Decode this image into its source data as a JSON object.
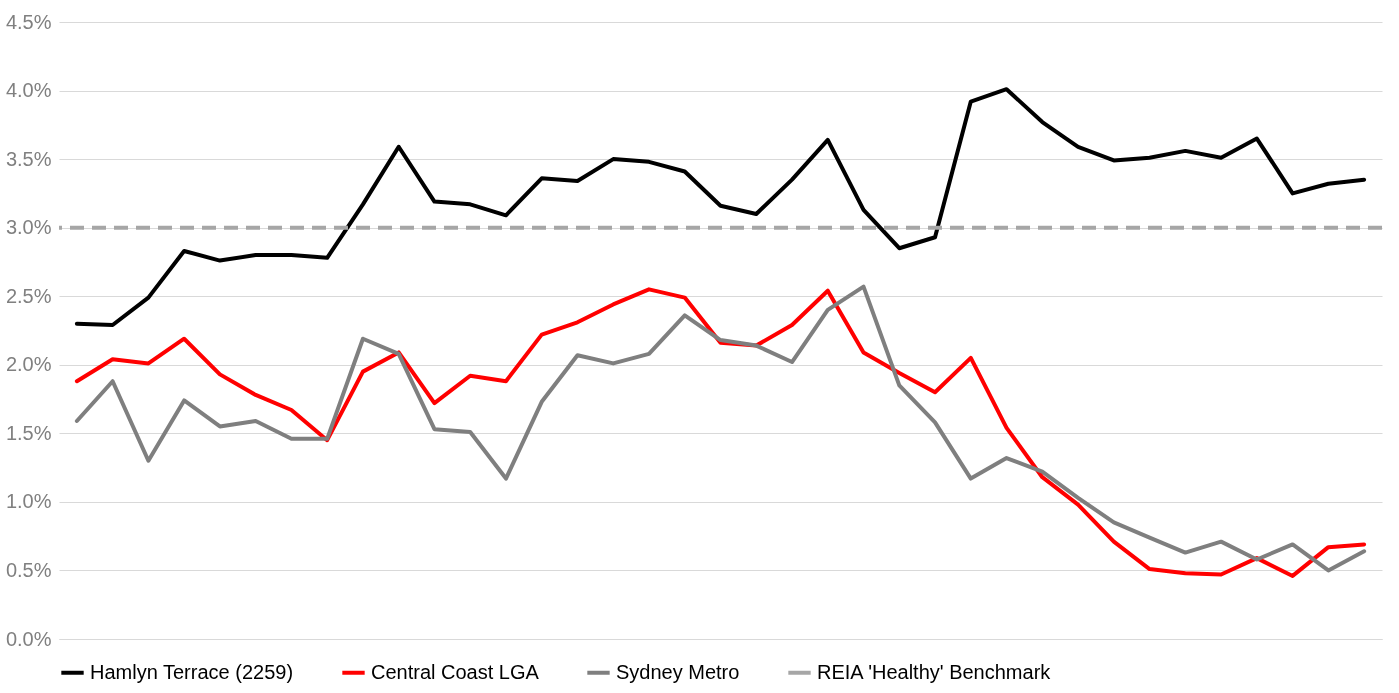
{
  "chart_data": {
    "type": "line",
    "categories": [
      null,
      null,
      null,
      null,
      null,
      null,
      null,
      null,
      null,
      null,
      null,
      null,
      null,
      null,
      null,
      null,
      null,
      null,
      null,
      null,
      null,
      null,
      null,
      null,
      null,
      null,
      null,
      null,
      null,
      null,
      null,
      null,
      null,
      null,
      null,
      null,
      null
    ],
    "series": [
      {
        "name": "Hamlyn Terrace (2259)",
        "color": "#000000",
        "values": [
          2.3,
          2.29,
          2.49,
          2.83,
          2.76,
          2.8,
          2.8,
          2.78,
          3.17,
          3.59,
          3.19,
          3.17,
          3.09,
          3.36,
          3.34,
          3.5,
          3.48,
          3.41,
          3.16,
          3.1,
          3.35,
          3.64,
          3.13,
          2.85,
          2.93,
          3.92,
          4.01,
          3.77,
          3.59,
          3.49,
          3.51,
          3.56,
          3.51,
          3.65,
          3.25,
          3.32,
          3.35
        ]
      },
      {
        "name": "Central Coast LGA",
        "color": "#ff0000",
        "values": [
          1.88,
          2.04,
          2.01,
          2.19,
          1.93,
          1.78,
          1.67,
          1.45,
          1.95,
          2.09,
          1.72,
          1.92,
          1.88,
          2.22,
          2.31,
          2.44,
          2.55,
          2.49,
          2.16,
          2.14,
          2.29,
          2.54,
          2.09,
          1.94,
          1.8,
          2.05,
          1.54,
          1.18,
          0.98,
          0.71,
          0.51,
          0.48,
          0.47,
          0.59,
          0.46,
          0.67,
          0.69
        ]
      },
      {
        "name": "Sydney Metro",
        "color": "#7f7f7f",
        "values": [
          1.59,
          1.88,
          1.3,
          1.74,
          1.55,
          1.59,
          1.46,
          1.46,
          2.19,
          2.08,
          1.53,
          1.51,
          1.17,
          1.73,
          2.07,
          2.01,
          2.08,
          2.36,
          2.18,
          2.14,
          2.02,
          2.4,
          2.57,
          1.85,
          1.58,
          1.17,
          1.32,
          1.22,
          1.03,
          0.85,
          0.74,
          0.63,
          0.71,
          0.58,
          0.69,
          0.5,
          0.64
        ]
      }
    ],
    "ref_lines": [
      {
        "axis": "y",
        "value": 3,
        "label": "REIA 'Healthy' Benchmark",
        "color": "#a6a6a6",
        "line_style": "dashed"
      }
    ],
    "ylim": [
      0,
      4.5
    ],
    "yticks": [
      {
        "value": 0,
        "label": "0.0%"
      },
      {
        "value": 0.5,
        "label": "0.5%"
      },
      {
        "value": 1,
        "label": "1.0%"
      },
      {
        "value": 1.5,
        "label": "1.5%"
      },
      {
        "value": 2,
        "label": "2.0%"
      },
      {
        "value": 2.5,
        "label": "2.5%"
      },
      {
        "value": 3,
        "label": "3.0%"
      },
      {
        "value": 3.5,
        "label": "3.5%"
      },
      {
        "value": 4,
        "label": "4.0%"
      },
      {
        "value": 4.5,
        "label": "4.5%"
      }
    ],
    "grid": "y",
    "legend": "bottom",
    "line_style": "solid"
  }
}
